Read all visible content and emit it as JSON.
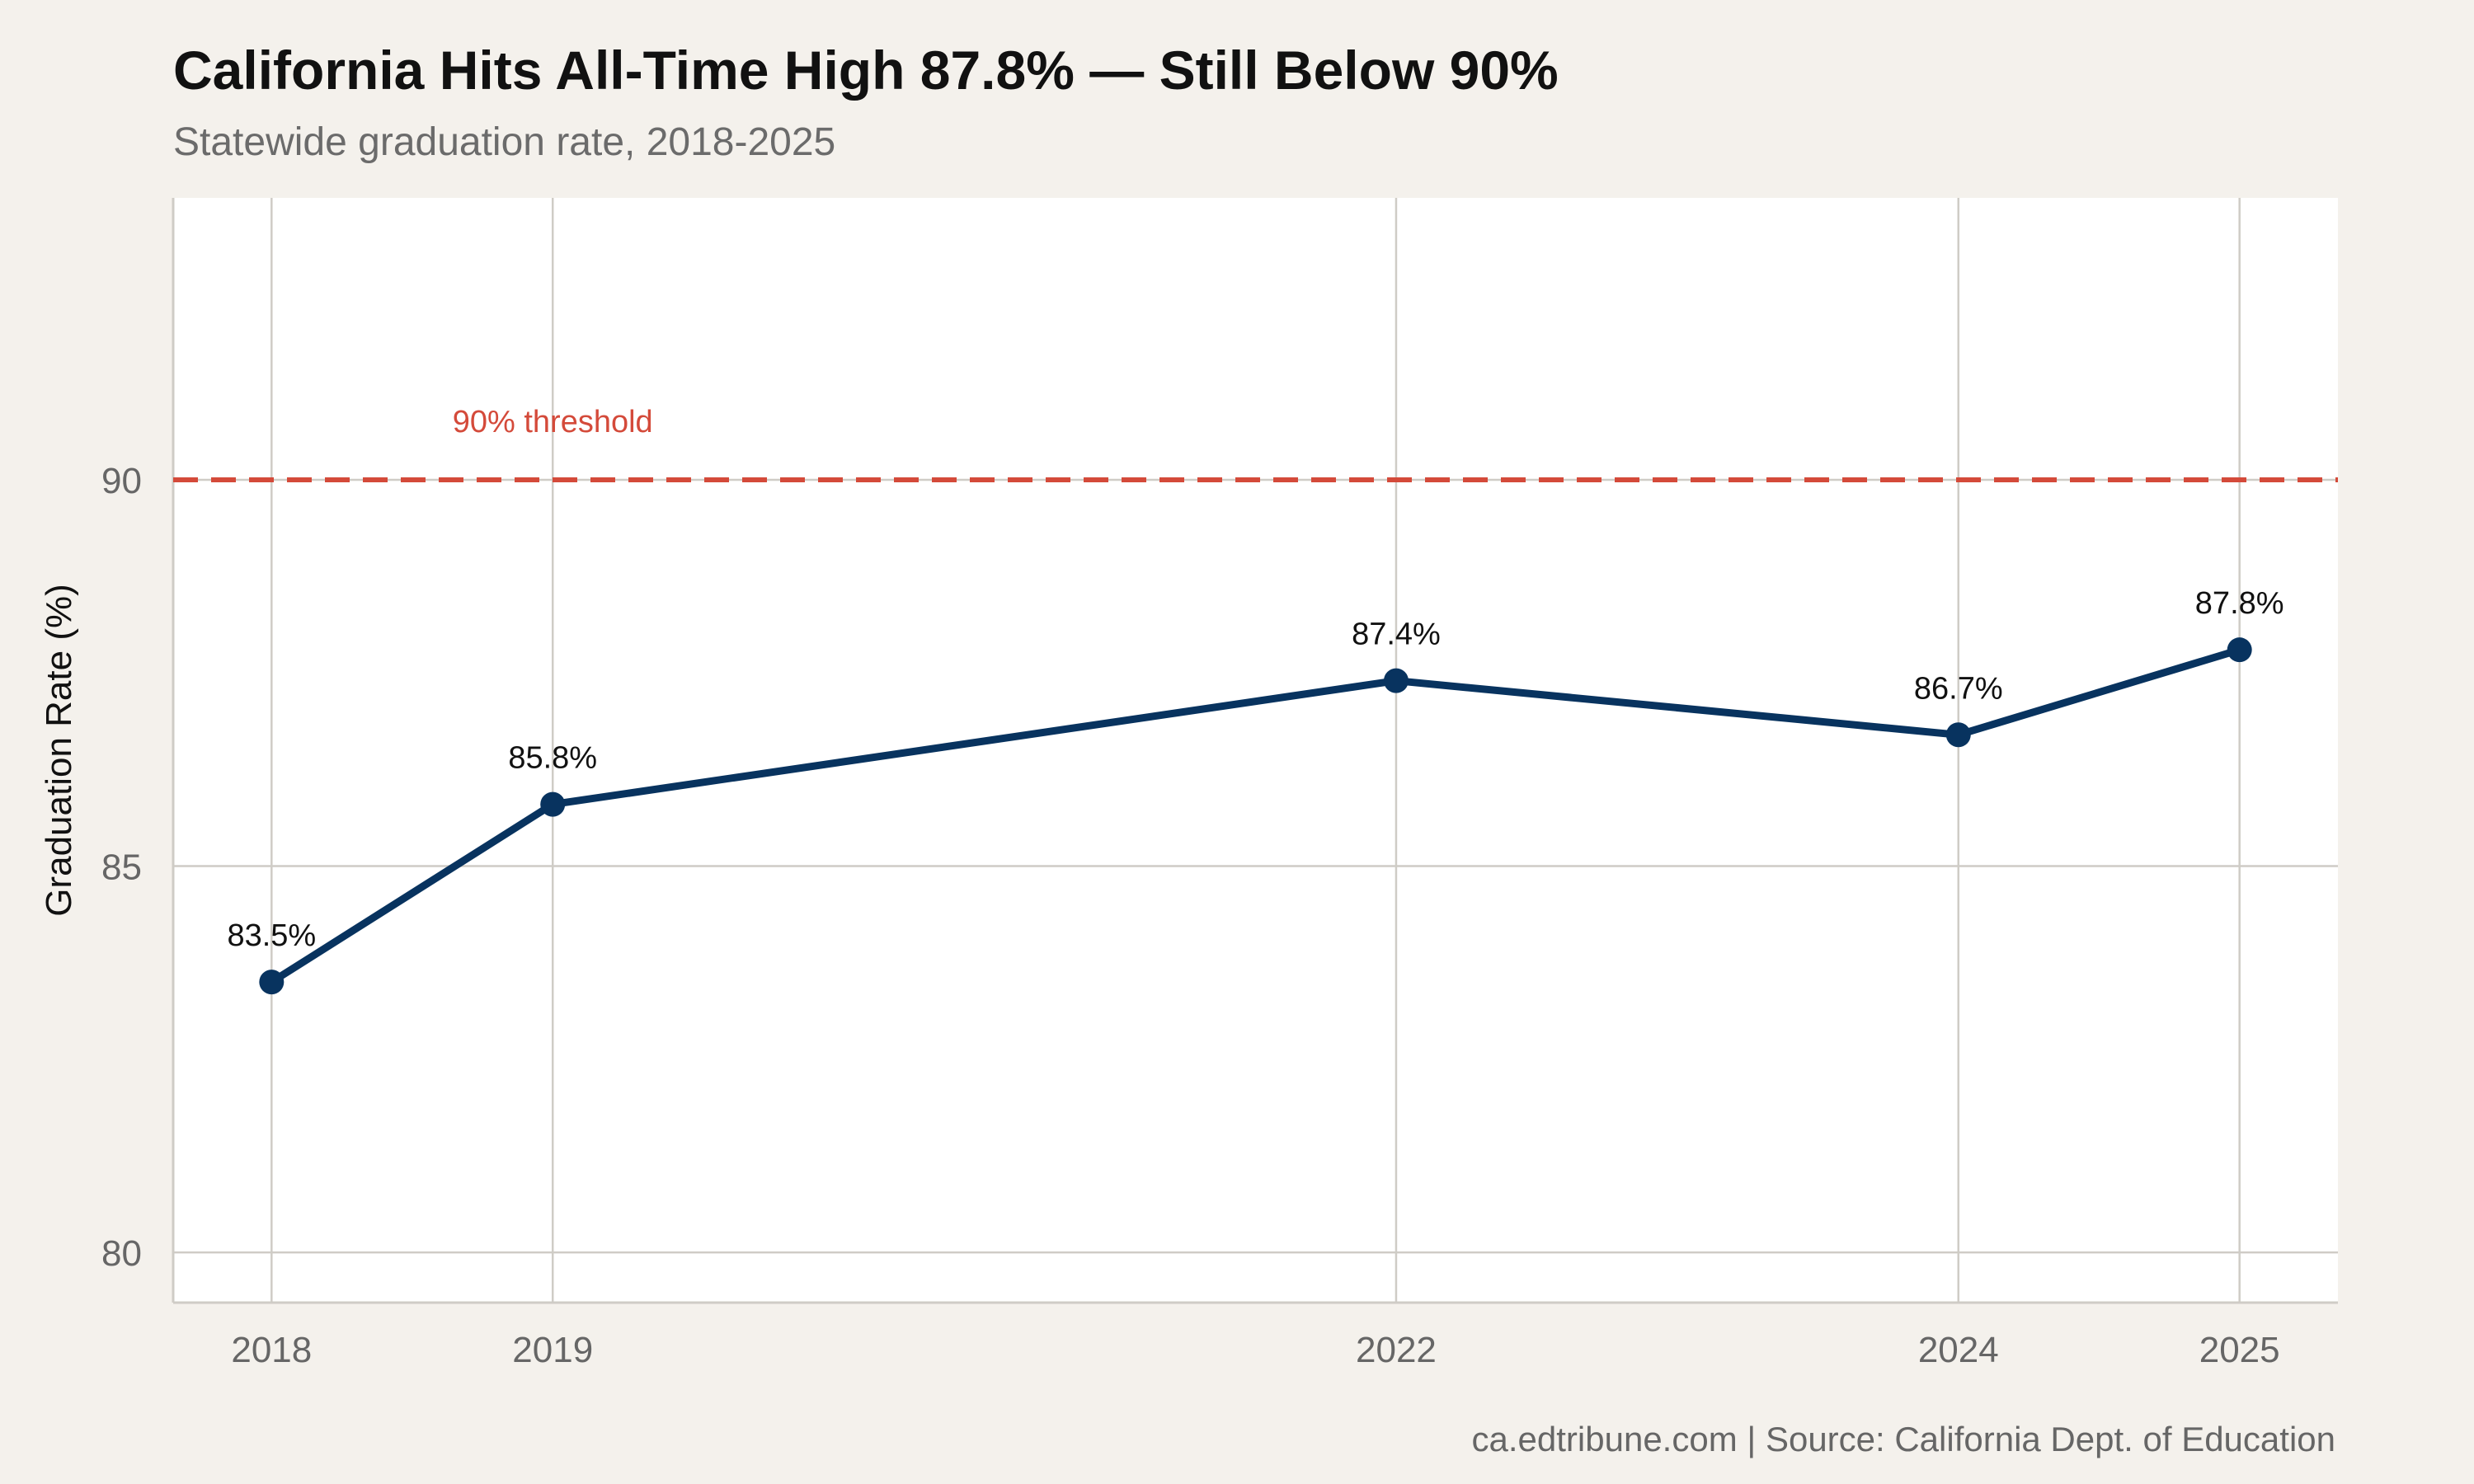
{
  "chart_data": {
    "type": "line",
    "title": "California Hits All-Time High 87.8% — Still Below 90%",
    "subtitle": "Statewide graduation rate, 2018-2025",
    "xlabel": "",
    "ylabel": "Graduation Rate (%)",
    "x": [
      2018,
      2019,
      2022,
      2024,
      2025
    ],
    "xticks": [
      "2018",
      "2019",
      "2022",
      "2024",
      "2025"
    ],
    "xlim": [
      2017.65,
      2025.35
    ],
    "ylim": [
      79.35,
      93.65
    ],
    "yticks": [
      80,
      85,
      90
    ],
    "series": [
      {
        "values": [
          83.5,
          85.8,
          87.4,
          86.7,
          87.8
        ],
        "labels": [
          "83.5%",
          "85.8%",
          "87.4%",
          "86.7%",
          "87.8%"
        ],
        "color": "#08335f"
      }
    ],
    "reference_line": {
      "value": 90,
      "label": "90% threshold",
      "label_x": 2019,
      "style": "dashed",
      "color": "#d44a3a"
    },
    "grid": true,
    "legend": "none",
    "caption": "ca.edtribune.com | Source: California Dept. of Education"
  },
  "colors": {
    "background": "#f4f1ec",
    "panel": "#ffffff",
    "grid": "#cfccc6",
    "axis_text": "#666666",
    "title": "#111111",
    "label_text": "#111111"
  }
}
